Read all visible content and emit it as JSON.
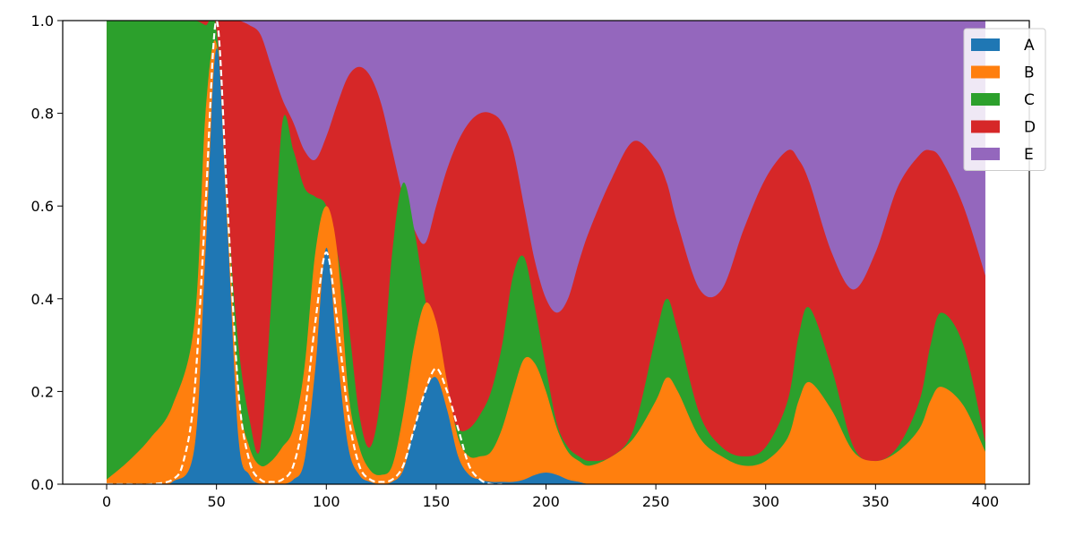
{
  "chart_data": {
    "type": "area",
    "stacked": true,
    "title": "",
    "xlabel": "",
    "ylabel": "",
    "xlim": [
      -20,
      420
    ],
    "ylim": [
      0,
      1.0
    ],
    "x_ticks": [
      0,
      50,
      100,
      150,
      200,
      250,
      300,
      350,
      400
    ],
    "x_tick_labels": [
      "0",
      "50",
      "100",
      "150",
      "200",
      "250",
      "300",
      "350",
      "400"
    ],
    "y_ticks": [
      0.0,
      0.2,
      0.4,
      0.6,
      0.8,
      1.0
    ],
    "y_tick_labels": [
      "0.0",
      "0.2",
      "0.4",
      "0.6",
      "0.8",
      "1.0"
    ],
    "grid": false,
    "legend_position": "top-right",
    "x": [
      0,
      10,
      20,
      30,
      40,
      45,
      50,
      55,
      60,
      65,
      70,
      75,
      80,
      85,
      90,
      95,
      100,
      105,
      110,
      115,
      120,
      125,
      130,
      135,
      140,
      145,
      150,
      155,
      160,
      165,
      170,
      175,
      180,
      185,
      190,
      195,
      200,
      205,
      210,
      215,
      220,
      230,
      240,
      250,
      255,
      260,
      270,
      280,
      290,
      300,
      310,
      315,
      320,
      330,
      340,
      350,
      360,
      370,
      375,
      380,
      390,
      400
    ],
    "cumulative": [
      {
        "name": "A",
        "color": "#1f77b4",
        "values": [
          0,
          0,
          0,
          0.005,
          0.08,
          0.5,
          0.94,
          0.55,
          0.1,
          0.02,
          0,
          0,
          0,
          0.01,
          0.05,
          0.25,
          0.51,
          0.28,
          0.08,
          0.02,
          0.005,
          0,
          0.005,
          0.03,
          0.12,
          0.2,
          0.23,
          0.16,
          0.06,
          0.02,
          0.01,
          0.005,
          0.005,
          0.005,
          0.01,
          0.02,
          0.025,
          0.02,
          0.01,
          0.005,
          0,
          0,
          0,
          0,
          0,
          0,
          0,
          0,
          0,
          0,
          0,
          0,
          0,
          0,
          0,
          0,
          0,
          0,
          0,
          0,
          0,
          0
        ]
      },
      {
        "name": "B",
        "color": "#ff7f0e",
        "values": [
          0.01,
          0.05,
          0.1,
          0.17,
          0.35,
          0.8,
          0.95,
          0.6,
          0.2,
          0.08,
          0.04,
          0.05,
          0.08,
          0.12,
          0.25,
          0.5,
          0.6,
          0.5,
          0.2,
          0.08,
          0.03,
          0.02,
          0.04,
          0.15,
          0.3,
          0.39,
          0.35,
          0.22,
          0.1,
          0.06,
          0.06,
          0.07,
          0.12,
          0.2,
          0.27,
          0.26,
          0.2,
          0.12,
          0.07,
          0.05,
          0.04,
          0.06,
          0.1,
          0.18,
          0.23,
          0.2,
          0.1,
          0.06,
          0.04,
          0.05,
          0.1,
          0.18,
          0.22,
          0.16,
          0.07,
          0.05,
          0.07,
          0.12,
          0.18,
          0.21,
          0.17,
          0.07
        ]
      },
      {
        "name": "C",
        "color": "#2ca02c",
        "values": [
          1,
          1,
          1,
          1,
          1,
          0.99,
          0.98,
          0.6,
          0.3,
          0.14,
          0.08,
          0.4,
          0.78,
          0.72,
          0.64,
          0.62,
          0.6,
          0.5,
          0.35,
          0.15,
          0.08,
          0.2,
          0.5,
          0.65,
          0.55,
          0.4,
          0.28,
          0.18,
          0.12,
          0.12,
          0.15,
          0.2,
          0.3,
          0.45,
          0.49,
          0.38,
          0.25,
          0.13,
          0.08,
          0.06,
          0.05,
          0.06,
          0.12,
          0.32,
          0.4,
          0.33,
          0.15,
          0.08,
          0.06,
          0.08,
          0.18,
          0.32,
          0.38,
          0.25,
          0.08,
          0.05,
          0.08,
          0.18,
          0.3,
          0.37,
          0.3,
          0.09
        ]
      },
      {
        "name": "D",
        "color": "#d62728",
        "values": [
          1,
          1,
          1,
          1,
          1,
          1,
          1,
          1,
          1,
          0.99,
          0.97,
          0.9,
          0.83,
          0.78,
          0.72,
          0.7,
          0.75,
          0.82,
          0.88,
          0.9,
          0.88,
          0.82,
          0.72,
          0.62,
          0.55,
          0.52,
          0.6,
          0.68,
          0.74,
          0.78,
          0.8,
          0.8,
          0.78,
          0.72,
          0.6,
          0.48,
          0.4,
          0.37,
          0.4,
          0.48,
          0.55,
          0.66,
          0.74,
          0.7,
          0.65,
          0.56,
          0.42,
          0.42,
          0.55,
          0.66,
          0.72,
          0.7,
          0.65,
          0.5,
          0.42,
          0.5,
          0.64,
          0.71,
          0.72,
          0.7,
          0.6,
          0.45
        ]
      },
      {
        "name": "E",
        "color": "#9467bd",
        "values": [
          1,
          1,
          1,
          1,
          1,
          1,
          1,
          1,
          1,
          1,
          1,
          1,
          1,
          1,
          1,
          1,
          1,
          1,
          1,
          1,
          1,
          1,
          1,
          1,
          1,
          1,
          1,
          1,
          1,
          1,
          1,
          1,
          1,
          1,
          1,
          1,
          1,
          1,
          1,
          1,
          1,
          1,
          1,
          1,
          1,
          1,
          1,
          1,
          1,
          1,
          1,
          1,
          1,
          1,
          1,
          1,
          1,
          1,
          1,
          1,
          1,
          1
        ]
      }
    ],
    "overlay_line": {
      "style": "dashed",
      "color": "#ffffff",
      "x": [
        0,
        10,
        20,
        30,
        35,
        40,
        45,
        50,
        55,
        60,
        65,
        70,
        75,
        80,
        85,
        90,
        95,
        100,
        105,
        110,
        115,
        120,
        125,
        130,
        135,
        140,
        145,
        150,
        155,
        160,
        165,
        170,
        175,
        180
      ],
      "y": [
        0,
        0,
        0,
        0.01,
        0.05,
        0.2,
        0.6,
        1.0,
        0.6,
        0.2,
        0.05,
        0.01,
        0.005,
        0.01,
        0.04,
        0.15,
        0.35,
        0.5,
        0.35,
        0.15,
        0.04,
        0.01,
        0.005,
        0.01,
        0.04,
        0.12,
        0.2,
        0.25,
        0.2,
        0.12,
        0.04,
        0.01,
        0,
        0
      ]
    },
    "legend": [
      "A",
      "B",
      "C",
      "D",
      "E"
    ]
  }
}
